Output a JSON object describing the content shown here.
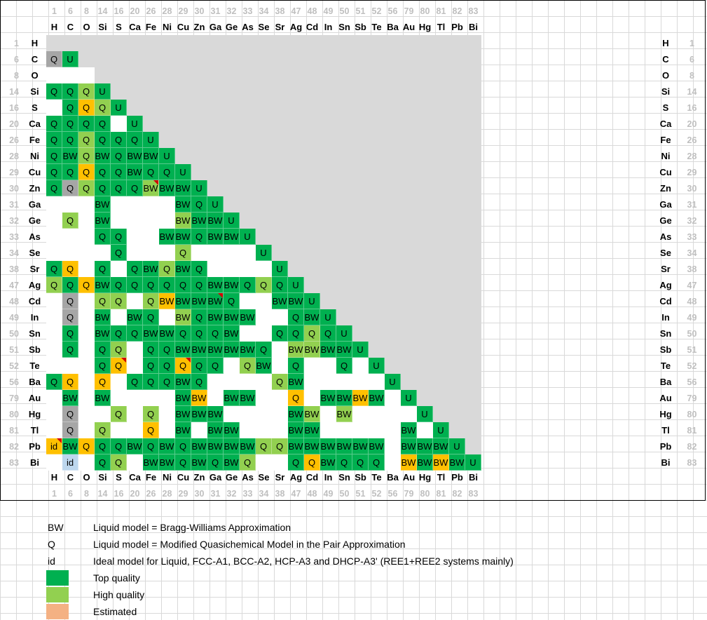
{
  "elements": [
    {
      "z": "1",
      "s": "H"
    },
    {
      "z": "6",
      "s": "C"
    },
    {
      "z": "8",
      "s": "O"
    },
    {
      "z": "14",
      "s": "Si"
    },
    {
      "z": "16",
      "s": "S"
    },
    {
      "z": "20",
      "s": "Ca"
    },
    {
      "z": "26",
      "s": "Fe"
    },
    {
      "z": "28",
      "s": "Ni"
    },
    {
      "z": "29",
      "s": "Cu"
    },
    {
      "z": "30",
      "s": "Zn"
    },
    {
      "z": "31",
      "s": "Ga"
    },
    {
      "z": "32",
      "s": "Ge"
    },
    {
      "z": "33",
      "s": "As"
    },
    {
      "z": "34",
      "s": "Se"
    },
    {
      "z": "38",
      "s": "Sr"
    },
    {
      "z": "47",
      "s": "Ag"
    },
    {
      "z": "48",
      "s": "Cd"
    },
    {
      "z": "49",
      "s": "In"
    },
    {
      "z": "50",
      "s": "Sn"
    },
    {
      "z": "51",
      "s": "Sb"
    },
    {
      "z": "52",
      "s": "Te"
    },
    {
      "z": "56",
      "s": "Ba"
    },
    {
      "z": "79",
      "s": "Au"
    },
    {
      "z": "80",
      "s": "Hg"
    },
    {
      "z": "81",
      "s": "Tl"
    },
    {
      "z": "82",
      "s": "Pb"
    },
    {
      "z": "83",
      "s": "Bi"
    }
  ],
  "colors": {
    "top": "#00b050",
    "high": "#92d050",
    "orange": "#ffc000",
    "gray": "#a6a6a6",
    "blue": "#bdd7ee",
    "salmon": "#f4b183",
    "white": "#ffffff",
    "unassessed": "#d9d9d9"
  },
  "legend": [
    {
      "code": "BW",
      "text": "Liquid model = Bragg-Williams Approximation"
    },
    {
      "code": "Q",
      "text": "Liquid model = Modified Quasichemical Model in the Pair Approximation"
    },
    {
      "code": "id",
      "text": "Ideal model for Liquid, FCC-A1, BCC-A2, HCP-A3 and DHCP-A3' (REE1+REE2 systems mainly)"
    },
    {
      "code": "",
      "swatch": "top",
      "text": "Top quality"
    },
    {
      "code": "",
      "swatch": "high",
      "text": "High quality"
    },
    {
      "code": "",
      "swatch": "salmon",
      "text": "Estimated"
    }
  ],
  "matrix": {
    "6": [
      "gray:Q",
      "G:U"
    ],
    "8": [
      "W:",
      "W:"
    ],
    "14": [
      "G:Q",
      "G:Q",
      "L:Q",
      "G:U"
    ],
    "16": [
      "W:",
      "G:Q",
      "O:Q",
      "L:Q",
      "G:U"
    ],
    "20": [
      "G:Q",
      "G:Q",
      "G:Q",
      "G:Q",
      "W:",
      "G:U"
    ],
    "26": [
      "G:Q",
      "G:Q",
      "L:Q",
      "G:Q",
      "G:Q",
      "G:Q",
      "G:U"
    ],
    "28": [
      "G:Q",
      "G:BW",
      "L:Q",
      "G:BW",
      "G:Q",
      "G:BW",
      "G:BW",
      "G:U"
    ],
    "29": [
      "G:Q",
      "G:Q",
      "O:Q",
      "G:Q",
      "G:Q",
      "G:BW",
      "G:Q",
      "G:Q",
      "G:U"
    ],
    "30": [
      "G:Q",
      "gray:Q",
      "L:Q",
      "G:Q",
      "G:Q",
      "G:Q",
      "Lf:BW",
      "G:BW",
      "G:BW",
      "G:U"
    ],
    "31": [
      "W:",
      "W:",
      "W:",
      "G:BW",
      "W:",
      "W:",
      "W:",
      "W:",
      "G:BW",
      "G:Q",
      "G:U"
    ],
    "32": [
      "W:",
      "L:Q",
      "W:",
      "G:BW",
      "W:",
      "W:",
      "W:",
      "W:",
      "L:BW",
      "G:BW",
      "G:BW",
      "G:U"
    ],
    "33": [
      "W:",
      "W:",
      "W:",
      "G:Q",
      "G:Q",
      "W:",
      "W:",
      "G:BW",
      "G:BW",
      "G:Q",
      "G:BW",
      "G:BW",
      "G:U"
    ],
    "34": [
      "W:",
      "W:",
      "W:",
      "W:",
      "G:Q",
      "W:",
      "W:",
      "W:",
      "L:Q",
      "W:",
      "W:",
      "W:",
      "W:",
      "G:U"
    ],
    "38": [
      "G:Q",
      "O:Q",
      "W:",
      "G:Q",
      "W:",
      "G:Q",
      "G:BW",
      "L:Q",
      "G:BW",
      "G:Q",
      "W:",
      "W:",
      "W:",
      "W:",
      "G:U"
    ],
    "47": [
      "L:Q",
      "G:Q",
      "O:Q",
      "G:BW",
      "G:Q",
      "G:Q",
      "G:Q",
      "G:Q",
      "G:Q",
      "G:Q",
      "G:BW",
      "G:BW",
      "G:Q",
      "L:Q",
      "G:Q",
      "G:U"
    ],
    "48": [
      "W:",
      "gray:Q",
      "W:",
      "L:Q",
      "L:Q",
      "W:",
      "L:Q",
      "O:BW",
      "G:BW",
      "G:BW",
      "Gf:BW",
      "G:Q",
      "W:",
      "W:",
      "G:BW",
      "G:BW",
      "G:U"
    ],
    "49": [
      "W:",
      "gray:Q",
      "W:",
      "G:BW",
      "W:",
      "G:BW",
      "G:Q",
      "W:",
      "L:BW",
      "G:Q",
      "G:BW",
      "G:BW",
      "G:BW",
      "W:",
      "W:",
      "G:Q",
      "G:BW",
      "G:U"
    ],
    "50": [
      "W:",
      "G:Q",
      "W:",
      "G:BW",
      "G:Q",
      "G:Q",
      "G:BW",
      "G:BW",
      "G:Q",
      "G:Q",
      "G:Q",
      "G:BW",
      "W:",
      "W:",
      "G:Q",
      "G:Q",
      "L:Q",
      "G:Q",
      "G:U"
    ],
    "51": [
      "W:",
      "G:Q",
      "W:",
      "G:Q",
      "L:Q",
      "W:",
      "G:Q",
      "G:Q",
      "G:BW",
      "G:BW",
      "G:BW",
      "G:BW",
      "G:BW",
      "G:Q",
      "W:",
      "L:BW",
      "L:BW",
      "G:BW",
      "G:BW",
      "G:U"
    ],
    "52": [
      "W:",
      "W:",
      "W:",
      "G:Q",
      "Of:Q",
      "W:",
      "G:Q",
      "G:Q",
      "Of:Q",
      "G:Q",
      "G:Q",
      "W:",
      "L:Q",
      "G:BW",
      "W:",
      "G:Q",
      "W:",
      "W:",
      "G:Q",
      "W:",
      "G:U"
    ],
    "56": [
      "G:Q",
      "O:Q",
      "W:",
      "O:Q",
      "W:",
      "G:Q",
      "G:Q",
      "G:Q",
      "G:BW",
      "G:Q",
      "W:",
      "W:",
      "W:",
      "W:",
      "L:Q",
      "G:BW",
      "W:",
      "W:",
      "W:",
      "W:",
      "W:",
      "G:U"
    ],
    "79": [
      "W:",
      "G:BW",
      "W:",
      "G:BW",
      "W:",
      "W:",
      "W:",
      "W:",
      "G:BW",
      "O:BW",
      "W:",
      "G:BW",
      "G:BW",
      "W:",
      "W:",
      "O:Q",
      "W:",
      "G:BW",
      "G:BW",
      "O:BW",
      "G:BW",
      "W:",
      "G:U"
    ],
    "80": [
      "W:",
      "gray:Q",
      "W:",
      "W:",
      "L:Q",
      "W:",
      "L:Q",
      "W:",
      "G:BW",
      "G:BW",
      "G:BW",
      "W:",
      "W:",
      "W:",
      "W:",
      "G:BW",
      "L:BW",
      "W:",
      "L:BW",
      "W:",
      "W:",
      "W:",
      "W:",
      "G:U"
    ],
    "81": [
      "W:",
      "gray:Q",
      "W:",
      "L:Q",
      "W:",
      "W:",
      "O:Q",
      "W:",
      "G:BW",
      "W:",
      "G:BW",
      "G:BW",
      "W:",
      "W:",
      "W:",
      "G:BW",
      "G:BW",
      "W:",
      "W:",
      "W:",
      "W:",
      "W:",
      "G:BW",
      "W:",
      "G:U"
    ],
    "82": [
      "Of:id",
      "G:BW",
      "O:Q",
      "G:Q",
      "G:Q",
      "G:BW",
      "G:Q",
      "G:BW",
      "G:Q",
      "G:BW",
      "G:BW",
      "G:BW",
      "G:BW",
      "L:Q",
      "L:Q",
      "G:BW",
      "G:BW",
      "G:BW",
      "G:BW",
      "G:BW",
      "G:BW",
      "W:",
      "G:BW",
      "G:BW",
      "G:BW",
      "G:U"
    ],
    "83": [
      "W:",
      "B:id",
      "W:",
      "G:Q",
      "L:Q",
      "W:",
      "G:BW",
      "G:BW",
      "G:Q",
      "G:BW",
      "G:Q",
      "G:BW",
      "L:Q",
      "W:",
      "W:",
      "G:Q",
      "O:Q",
      "G:BW",
      "G:Q",
      "G:Q",
      "G:Q",
      "W:",
      "O:BW",
      "G:BW",
      "O:BW",
      "G:BW",
      "G:U"
    ]
  }
}
